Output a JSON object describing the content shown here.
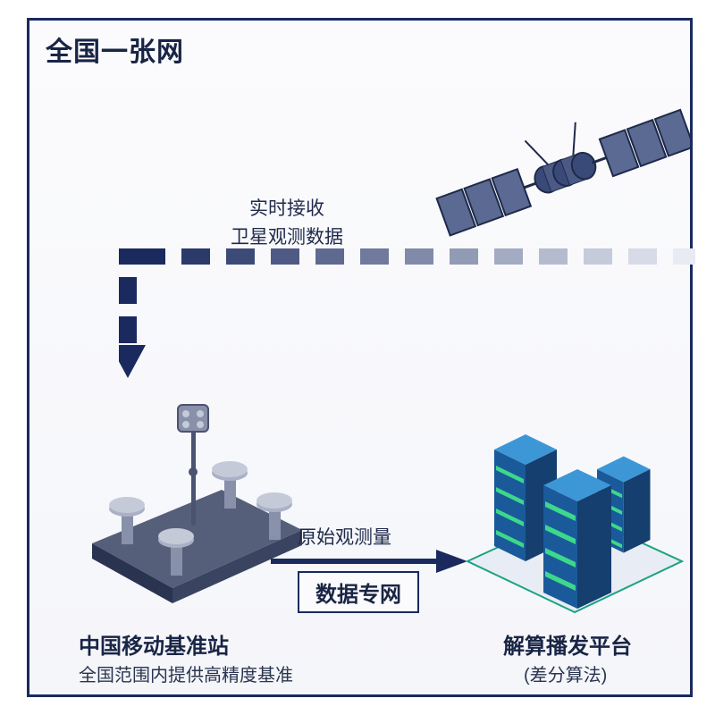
{
  "type": "infographic",
  "frame": {
    "border_color": "#1a2a5e",
    "border_width": 3,
    "bg_gradient_from": "#fbfbfd",
    "bg_gradient_to": "#f5f6fa"
  },
  "title": "全国一张网",
  "satellite": {
    "label_line1": "实时接收",
    "label_line2": "卫星观测数据",
    "body_color": "#3a4a78",
    "panel_color": "#5a6a92",
    "panel_edge": "#1f2a4a"
  },
  "dash_path": {
    "color_dark": "#1a2a5e",
    "color_fade": "#c8cee0",
    "segment_w": 32,
    "segment_h": 18,
    "gap": 18,
    "horizontal_segments": 13,
    "vertical_segments": 3,
    "arrowhead_color": "#1a2a5e"
  },
  "station": {
    "title": "中国移动基准站",
    "subtitle": "全国范围内提供高精度基准",
    "platform_top": "#565f7a",
    "platform_side": "#2a3350",
    "pillar_color": "#9ea6bd",
    "pillar_shadow": "#6b7390"
  },
  "arrow": {
    "label_top": "原始观测量",
    "label_box": "数据专网",
    "color": "#1a2a5e",
    "stroke_width": 6
  },
  "servers": {
    "title": "解算播发平台",
    "subtitle": "(差分算法)",
    "rack_top": "#3d97d6",
    "rack_front": "#1a5a9a",
    "rack_side": "#143f6e",
    "accent": "#3dd88a",
    "floor_edge": "#1aa380",
    "floor_fill": "#e8ecf4"
  },
  "typography": {
    "title_fontsize": 30,
    "heading_fontsize": 24,
    "label_fontsize": 21,
    "sub_fontsize": 20,
    "text_color": "#192545",
    "sub_color": "#2a344f"
  }
}
